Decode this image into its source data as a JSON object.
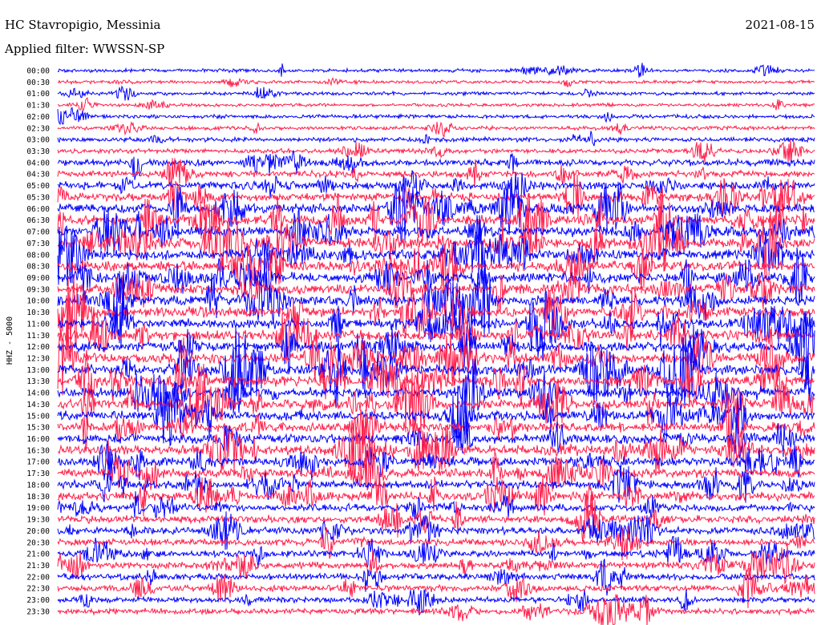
{
  "header": {
    "station": "HC Stavropigio, Messinia",
    "date": "2021-08-15",
    "filter": "Applied filter: WWSSN-SP"
  },
  "chart_data": {
    "type": "line",
    "title": "HC Stavropigio, Messinia",
    "subtitle": "Applied filter: WWSSN-SP",
    "date": "2021-08-15",
    "ylabel": "HHZ - 5000",
    "xlabel": "",
    "row_labels": [
      "00:00",
      "00:30",
      "01:00",
      "01:30",
      "02:00",
      "02:30",
      "03:00",
      "03:30",
      "04:00",
      "04:30",
      "05:00",
      "05:30",
      "06:00",
      "06:30",
      "07:00",
      "07:30",
      "08:00",
      "08:30",
      "09:00",
      "09:30",
      "10:00",
      "10:30",
      "11:00",
      "11:30",
      "12:00",
      "12:30",
      "13:00",
      "13:30",
      "14:00",
      "14:30",
      "15:00",
      "15:30",
      "16:00",
      "16:30",
      "17:00",
      "17:30",
      "18:00",
      "18:30",
      "19:00",
      "19:30",
      "20:00",
      "20:30",
      "21:00",
      "21:30",
      "22:00",
      "22:30",
      "23:00",
      "23:30"
    ],
    "trace_colors": [
      "#0000ff",
      "#ff1f4b"
    ],
    "grid": false,
    "legend": "none",
    "activity_envelope": {
      "hours": [
        0,
        1,
        2,
        3,
        4,
        5,
        6,
        7,
        8,
        9,
        10,
        11,
        12,
        13,
        14,
        15,
        16,
        17,
        18,
        19,
        20,
        21,
        22,
        23
      ],
      "relative_amplitude": [
        0.15,
        0.15,
        0.2,
        0.3,
        0.55,
        0.75,
        0.95,
        1.0,
        1.0,
        1.0,
        1.0,
        1.0,
        1.0,
        1.0,
        0.95,
        0.9,
        0.9,
        0.85,
        0.8,
        0.7,
        0.6,
        0.6,
        0.55,
        0.45
      ]
    }
  }
}
